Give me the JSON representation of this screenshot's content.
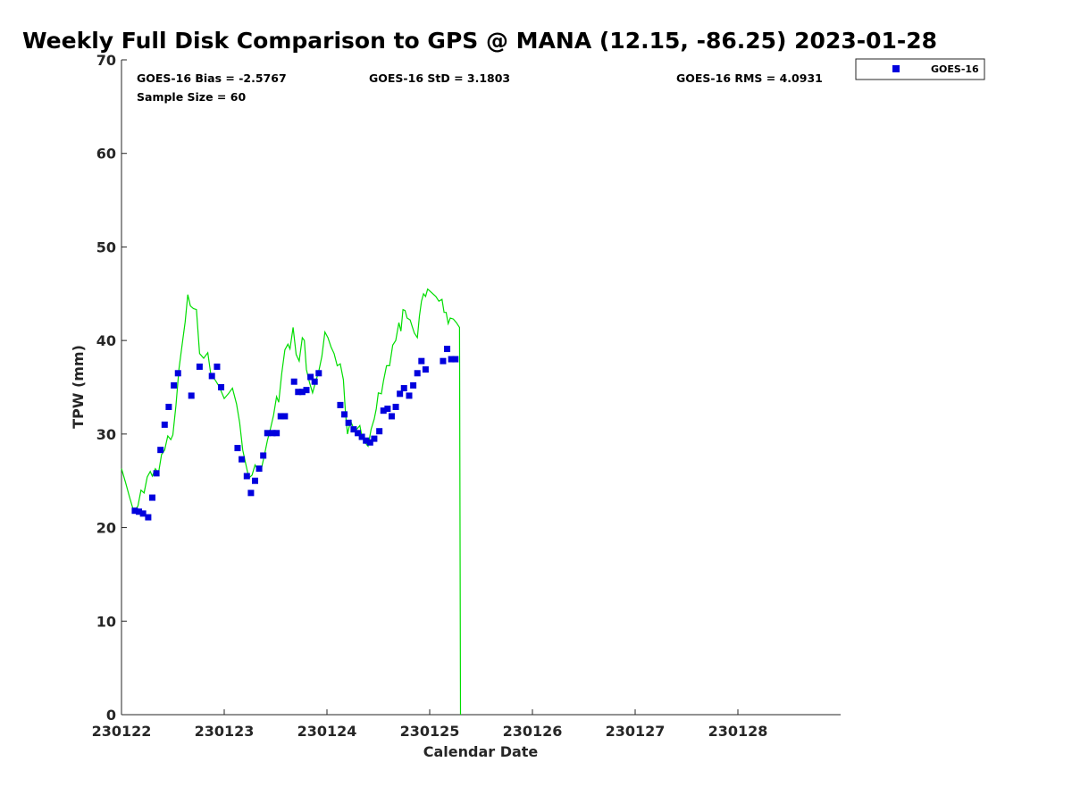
{
  "chart_data": {
    "type": "scatter",
    "title": "Weekly Full Disk Comparison to GPS @ MANA (12.15, -86.25) 2023-01-28",
    "xlabel": "Calendar Date",
    "ylabel": "TPW (mm)",
    "xlim": [
      0,
      7
    ],
    "ylim": [
      0,
      70
    ],
    "yticks": [
      0,
      10,
      20,
      30,
      40,
      50,
      60,
      70
    ],
    "xtick_positions": [
      0,
      1,
      2,
      3,
      4,
      5,
      6
    ],
    "xtick_labels": [
      "230122",
      "230123",
      "230124",
      "230125",
      "230126",
      "230127",
      "230128"
    ],
    "stats": {
      "bias": "GOES-16 Bias = -2.5767",
      "std": "GOES-16 StD = 3.1803",
      "rms": "GOES-16 RMS = 4.0931",
      "sample": "Sample Size = 60"
    },
    "legend": {
      "position": "top-right-outside",
      "entries": [
        {
          "label": "GOES-16",
          "color": "#0000dd",
          "marker": "square"
        }
      ]
    },
    "series": [
      {
        "name": "GOES-16",
        "kind": "scatter",
        "color": "#0000dd",
        "points": [
          [
            0.13,
            21.8
          ],
          [
            0.17,
            21.7
          ],
          [
            0.21,
            21.5
          ],
          [
            0.26,
            21.1
          ],
          [
            0.3,
            23.2
          ],
          [
            0.34,
            25.8
          ],
          [
            0.38,
            28.3
          ],
          [
            0.42,
            31.0
          ],
          [
            0.46,
            32.9
          ],
          [
            0.51,
            35.2
          ],
          [
            0.55,
            36.5
          ],
          [
            0.68,
            34.1
          ],
          [
            0.76,
            37.2
          ],
          [
            0.88,
            36.2
          ],
          [
            0.93,
            37.2
          ],
          [
            0.97,
            35.0
          ],
          [
            1.13,
            28.5
          ],
          [
            1.17,
            27.3
          ],
          [
            1.22,
            25.5
          ],
          [
            1.26,
            23.7
          ],
          [
            1.3,
            25.0
          ],
          [
            1.34,
            26.3
          ],
          [
            1.38,
            27.7
          ],
          [
            1.42,
            30.1
          ],
          [
            1.47,
            30.1
          ],
          [
            1.51,
            30.1
          ],
          [
            1.55,
            31.9
          ],
          [
            1.59,
            31.9
          ],
          [
            1.68,
            35.6
          ],
          [
            1.72,
            34.5
          ],
          [
            1.76,
            34.5
          ],
          [
            1.8,
            34.7
          ],
          [
            1.84,
            36.1
          ],
          [
            1.88,
            35.6
          ],
          [
            1.92,
            36.5
          ],
          [
            2.13,
            33.1
          ],
          [
            2.17,
            32.1
          ],
          [
            2.21,
            31.2
          ],
          [
            2.26,
            30.5
          ],
          [
            2.3,
            30.1
          ],
          [
            2.34,
            29.7
          ],
          [
            2.38,
            29.3
          ],
          [
            2.42,
            29.1
          ],
          [
            2.46,
            29.5
          ],
          [
            2.51,
            30.3
          ],
          [
            2.55,
            32.5
          ],
          [
            2.59,
            32.7
          ],
          [
            2.63,
            31.9
          ],
          [
            2.67,
            32.9
          ],
          [
            2.71,
            34.3
          ],
          [
            2.75,
            34.9
          ],
          [
            2.8,
            34.1
          ],
          [
            2.84,
            35.2
          ],
          [
            2.88,
            36.5
          ],
          [
            2.92,
            37.8
          ],
          [
            2.96,
            36.9
          ],
          [
            3.13,
            37.8
          ],
          [
            3.17,
            39.1
          ],
          [
            3.21,
            38.0
          ],
          [
            3.25,
            38.0
          ]
        ]
      },
      {
        "name": "GPS",
        "kind": "line",
        "color": "#00dd00",
        "points": [
          [
            0.0,
            26.3
          ],
          [
            0.04,
            24.8
          ],
          [
            0.08,
            23.2
          ],
          [
            0.12,
            21.7
          ],
          [
            0.16,
            22.3
          ],
          [
            0.19,
            24.0
          ],
          [
            0.22,
            23.7
          ],
          [
            0.25,
            25.4
          ],
          [
            0.28,
            26.0
          ],
          [
            0.3,
            25.5
          ],
          [
            0.33,
            26.3
          ],
          [
            0.36,
            25.8
          ],
          [
            0.39,
            27.8
          ],
          [
            0.42,
            28.3
          ],
          [
            0.45,
            29.8
          ],
          [
            0.48,
            29.4
          ],
          [
            0.5,
            29.9
          ],
          [
            0.53,
            33.0
          ],
          [
            0.56,
            37.0
          ],
          [
            0.59,
            39.5
          ],
          [
            0.62,
            42.0
          ],
          [
            0.645,
            44.9
          ],
          [
            0.67,
            43.7
          ],
          [
            0.7,
            43.4
          ],
          [
            0.73,
            43.3
          ],
          [
            0.76,
            38.6
          ],
          [
            0.8,
            38.1
          ],
          [
            0.84,
            38.7
          ],
          [
            0.87,
            36.3
          ],
          [
            0.91,
            35.8
          ],
          [
            0.95,
            35.1
          ],
          [
            1.0,
            33.8
          ],
          [
            1.04,
            34.3
          ],
          [
            1.08,
            34.9
          ],
          [
            1.12,
            33.2
          ],
          [
            1.15,
            31.2
          ],
          [
            1.18,
            28.3
          ],
          [
            1.21,
            26.8
          ],
          [
            1.24,
            25.3
          ],
          [
            1.27,
            25.6
          ],
          [
            1.3,
            26.7
          ],
          [
            1.33,
            26.1
          ],
          [
            1.36,
            26.2
          ],
          [
            1.39,
            27.7
          ],
          [
            1.42,
            29.3
          ],
          [
            1.45,
            30.6
          ],
          [
            1.48,
            32.0
          ],
          [
            1.51,
            34.0
          ],
          [
            1.53,
            33.4
          ],
          [
            1.56,
            36.5
          ],
          [
            1.59,
            39.0
          ],
          [
            1.62,
            39.6
          ],
          [
            1.64,
            39.1
          ],
          [
            1.67,
            41.4
          ],
          [
            1.7,
            38.5
          ],
          [
            1.73,
            37.8
          ],
          [
            1.76,
            40.3
          ],
          [
            1.78,
            40.0
          ],
          [
            1.8,
            36.9
          ],
          [
            1.83,
            35.5
          ],
          [
            1.86,
            34.4
          ],
          [
            1.89,
            35.6
          ],
          [
            1.92,
            36.7
          ],
          [
            1.95,
            38.3
          ],
          [
            1.98,
            40.9
          ],
          [
            2.01,
            40.3
          ],
          [
            2.04,
            39.3
          ],
          [
            2.07,
            38.6
          ],
          [
            2.1,
            37.3
          ],
          [
            2.13,
            37.5
          ],
          [
            2.16,
            35.8
          ],
          [
            2.18,
            32.3
          ],
          [
            2.2,
            30.0
          ],
          [
            2.23,
            31.4
          ],
          [
            2.26,
            30.6
          ],
          [
            2.29,
            30.5
          ],
          [
            2.32,
            30.9
          ],
          [
            2.34,
            29.8
          ],
          [
            2.37,
            29.1
          ],
          [
            2.4,
            28.7
          ],
          [
            2.43,
            30.5
          ],
          [
            2.46,
            31.6
          ],
          [
            2.48,
            32.7
          ],
          [
            2.5,
            34.4
          ],
          [
            2.53,
            34.3
          ],
          [
            2.55,
            35.7
          ],
          [
            2.58,
            37.3
          ],
          [
            2.61,
            37.3
          ],
          [
            2.64,
            39.5
          ],
          [
            2.67,
            40.0
          ],
          [
            2.7,
            41.9
          ],
          [
            2.72,
            41.0
          ],
          [
            2.74,
            43.3
          ],
          [
            2.76,
            43.2
          ],
          [
            2.78,
            42.4
          ],
          [
            2.81,
            42.2
          ],
          [
            2.83,
            41.5
          ],
          [
            2.85,
            40.8
          ],
          [
            2.88,
            40.3
          ],
          [
            2.9,
            42.6
          ],
          [
            2.92,
            44.2
          ],
          [
            2.94,
            45.0
          ],
          [
            2.96,
            44.7
          ],
          [
            2.98,
            45.5
          ],
          [
            3.02,
            45.1
          ],
          [
            3.06,
            44.7
          ],
          [
            3.09,
            44.2
          ],
          [
            3.12,
            44.4
          ],
          [
            3.14,
            43.0
          ],
          [
            3.16,
            43.0
          ],
          [
            3.18,
            41.8
          ],
          [
            3.2,
            42.4
          ],
          [
            3.23,
            42.3
          ],
          [
            3.26,
            41.9
          ],
          [
            3.29,
            41.4
          ],
          [
            3.3,
            0.0
          ]
        ]
      }
    ]
  }
}
